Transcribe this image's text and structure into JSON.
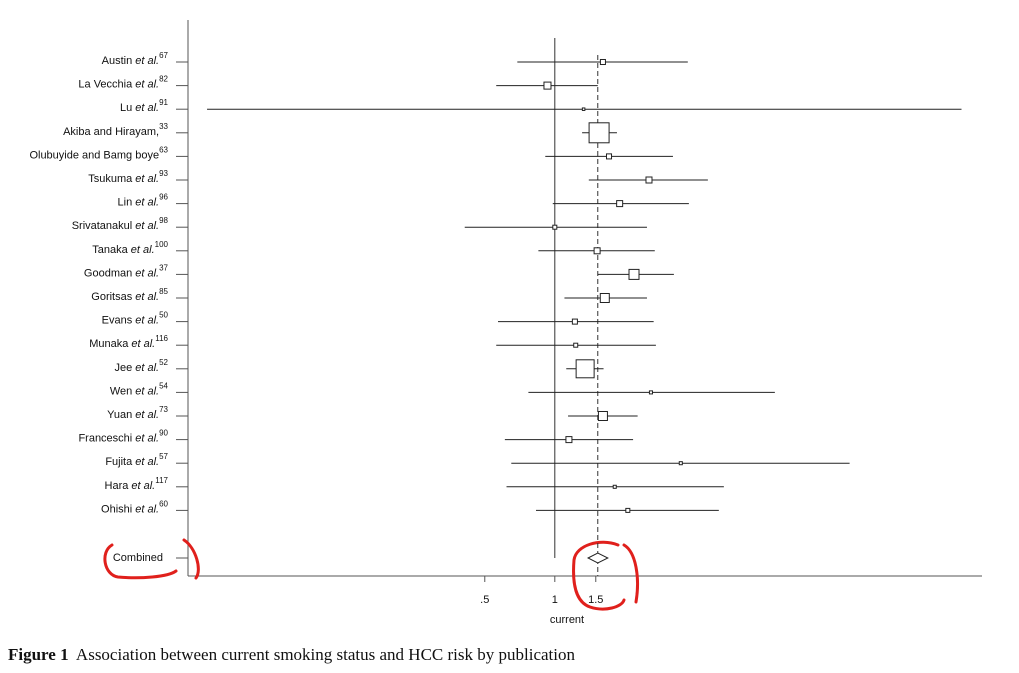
{
  "chart_data": {
    "type": "forest",
    "labels": [
      {
        "name": "Austin",
        "etal": "et al.",
        "ref": "67"
      },
      {
        "name": "La Vecchia",
        "etal": "et al.",
        "ref": "82"
      },
      {
        "name": "Lu",
        "etal": "et al.",
        "ref": "91"
      },
      {
        "name": "Akiba and Hirayam,",
        "etal": null,
        "ref": "33"
      },
      {
        "name": "Olubuyide and Bamg boye",
        "etal": null,
        "ref": "63"
      },
      {
        "name": "Tsukuma",
        "etal": "et al.",
        "ref": "93"
      },
      {
        "name": "Lin",
        "etal": "et al.",
        "ref": "96"
      },
      {
        "name": "Srivatanakul",
        "etal": "et al.",
        "ref": "98"
      },
      {
        "name": "Tanaka",
        "etal": "et al.",
        "ref": "100"
      },
      {
        "name": "Goodman",
        "etal": "et al.",
        "ref": "37"
      },
      {
        "name": "Goritsas",
        "etal": "et al.",
        "ref": "85"
      },
      {
        "name": "Evans",
        "etal": "et al.",
        "ref": "50"
      },
      {
        "name": "Munaka",
        "etal": "et al.",
        "ref": "116"
      },
      {
        "name": "Jee",
        "etal": "et al.",
        "ref": "52"
      },
      {
        "name": "Wen",
        "etal": "et al.",
        "ref": "54"
      },
      {
        "name": "Yuan",
        "etal": "et al.",
        "ref": "73"
      },
      {
        "name": "Franceschi",
        "etal": "et al.",
        "ref": "90"
      },
      {
        "name": "Fujita",
        "etal": "et al.",
        "ref": "57"
      },
      {
        "name": "Hara",
        "etal": "et al.",
        "ref": "117"
      },
      {
        "name": "Ohishi",
        "etal": "et al.",
        "ref": "60"
      }
    ],
    "values": [
      1.61,
      0.93,
      1.33,
      1.55,
      1.71,
      2.54,
      1.9,
      1.0,
      1.52,
      2.19,
      1.64,
      1.22,
      1.23,
      1.35,
      2.59,
      1.61,
      1.15,
      3.48,
      1.81,
      2.06
    ],
    "lower": [
      0.69,
      0.56,
      0.032,
      1.31,
      0.91,
      1.4,
      0.98,
      0.41,
      0.85,
      1.53,
      1.1,
      0.57,
      0.56,
      1.12,
      0.77,
      1.14,
      0.61,
      0.65,
      0.62,
      0.83
    ],
    "upper": [
      3.73,
      1.53,
      56,
      1.85,
      3.22,
      4.55,
      3.77,
      2.49,
      2.69,
      3.25,
      2.49,
      2.66,
      2.72,
      1.62,
      8.83,
      2.27,
      2.17,
      18.5,
      5.33,
      5.07
    ],
    "weights": [
      1.9,
      3.7,
      0.3,
      30.0,
      1.9,
      2.7,
      2.7,
      1.2,
      2.7,
      7.5,
      6.1,
      1.9,
      1.2,
      24.3,
      0.7,
      6.1,
      2.7,
      0.7,
      0.7,
      1.2
    ],
    "combined": {
      "label": "Combined",
      "value": 1.53,
      "lower": 1.39,
      "upper": 1.69
    },
    "reference_line": 1,
    "xlabel": "current",
    "xscale": "log",
    "xlim": [
      0.0265,
      68.6
    ],
    "xticks": [
      {
        "value": 0.5,
        "label": ".5"
      },
      1,
      1.5
    ],
    "caption": {
      "label": "Figure 1",
      "text": "Association between current smoking status and HCC risk by publication"
    }
  }
}
